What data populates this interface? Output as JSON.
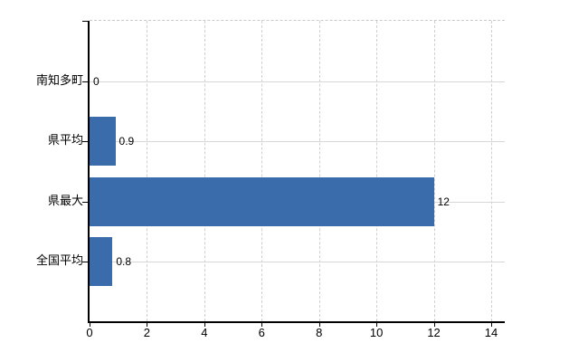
{
  "chart_data": {
    "type": "bar",
    "orientation": "horizontal",
    "title": "",
    "categories": [
      "南知多町",
      "県平均",
      "県最大",
      "全国平均"
    ],
    "values": [
      0,
      0.9,
      12,
      0.8
    ],
    "value_labels": [
      "0",
      "0.9",
      "12",
      "0.8"
    ],
    "xlim": [
      0,
      14
    ],
    "x_ticks": [
      0,
      2,
      4,
      6,
      8,
      10,
      12,
      14
    ],
    "x_tick_labels": [
      "0",
      "2",
      "4",
      "6",
      "8",
      "10",
      "12",
      "14"
    ],
    "grid": "on",
    "legend": "none",
    "colors": {
      "bar": "#3a6cab",
      "axis": "#000000",
      "gridline": "#d2d2d2",
      "background": "#ffffff",
      "text": "#000000"
    }
  }
}
